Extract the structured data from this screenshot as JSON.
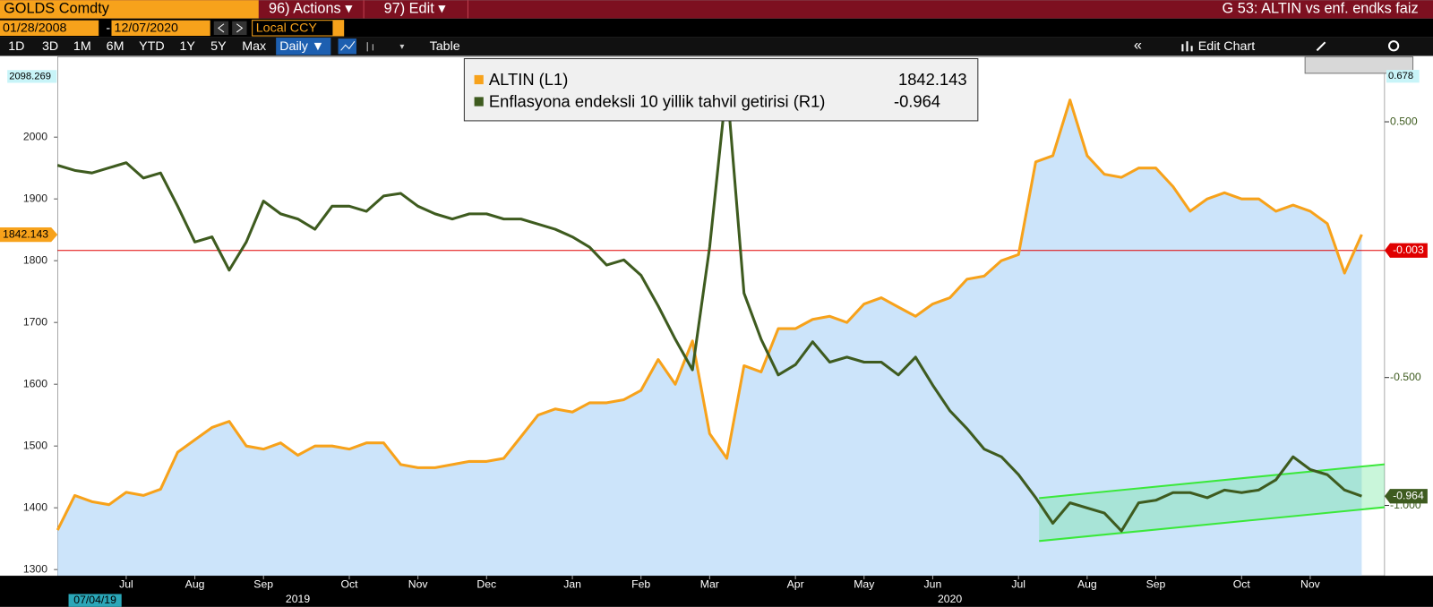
{
  "toolbar": {
    "ticker": "GOLDS Comdty",
    "actions": "96) Actions ▾",
    "edit": "97) Edit ▾",
    "page_title": "G 53: ALTIN vs enf. endks faiz",
    "start_date": "01/28/2008",
    "date_sep": "-",
    "end_date": "12/07/2020",
    "currency": "Local CCY",
    "periods": [
      "1D",
      "3D",
      "1M",
      "6M",
      "YTD",
      "1Y",
      "5Y",
      "Max"
    ],
    "frequency": "Daily ▼",
    "table": "Table",
    "edit_chart": "Edit Chart"
  },
  "chart_data": {
    "type": "line",
    "categories": [
      null,
      null,
      null,
      null,
      "Jul",
      null,
      null,
      null,
      "Aug",
      null,
      null,
      null,
      "Sep",
      null,
      null,
      null,
      null,
      "Oct",
      null,
      null,
      null,
      "Nov",
      null,
      null,
      null,
      "Dec",
      null,
      null,
      null,
      null,
      "Jan",
      null,
      null,
      null,
      "Feb",
      null,
      null,
      null,
      "Mar",
      null,
      null,
      null,
      null,
      "Apr",
      null,
      null,
      null,
      "May",
      null,
      null,
      null,
      "Jun",
      null,
      null,
      null,
      null,
      "Jul",
      null,
      null,
      null,
      "Aug",
      null,
      null,
      null,
      "Sep",
      null,
      null,
      null,
      null,
      "Oct",
      null,
      null,
      null,
      "Nov",
      null,
      null,
      null
    ],
    "years": [
      "2019",
      "2020"
    ],
    "start_label": "07/04/19",
    "series": [
      {
        "name": "ALTIN (L1)",
        "color": "#f7a21b",
        "area_color": "#cce4fa",
        "values": [
          1364,
          1420,
          1410,
          1405,
          1425,
          1420,
          1430,
          1490,
          1510,
          1530,
          1540,
          1500,
          1495,
          1505,
          1485,
          1500,
          1500,
          1495,
          1505,
          1505,
          1470,
          1465,
          1465,
          1470,
          1475,
          1475,
          1480,
          1515,
          1550,
          1560,
          1555,
          1570,
          1570,
          1575,
          1590,
          1640,
          1600,
          1670,
          1520,
          1480,
          1630,
          1620,
          1690,
          1690,
          1705,
          1710,
          1700,
          1730,
          1740,
          1725,
          1710,
          1730,
          1740,
          1770,
          1775,
          1800,
          1810,
          1960,
          1970,
          2060,
          1970,
          1940,
          1935,
          1950,
          1950,
          1920,
          1880,
          1900,
          1910,
          1900,
          1900,
          1880,
          1890,
          1880,
          1860,
          1780,
          1842.143
        ]
      },
      {
        "name": "Enflasyona endeksli 10 yillik tahvil getirisi (R1)",
        "color": "#3e5b1f",
        "axis": "y2",
        "values": [
          0.33,
          0.31,
          0.3,
          0.32,
          0.34,
          0.28,
          0.3,
          0.17,
          0.03,
          0.05,
          -0.08,
          0.03,
          0.19,
          0.14,
          0.12,
          0.08,
          0.17,
          0.17,
          0.15,
          0.21,
          0.22,
          0.17,
          0.14,
          0.12,
          0.14,
          0.14,
          0.12,
          0.12,
          0.1,
          0.08,
          0.05,
          0.01,
          -0.06,
          -0.04,
          -0.1,
          -0.22,
          -0.35,
          -0.47,
          0.01,
          0.65,
          -0.17,
          -0.35,
          -0.49,
          -0.45,
          -0.36,
          -0.44,
          -0.42,
          -0.44,
          -0.44,
          -0.49,
          -0.42,
          -0.53,
          -0.63,
          -0.7,
          -0.78,
          -0.81,
          -0.88,
          -0.97,
          -1.07,
          -0.99,
          -1.01,
          -1.03,
          -1.1,
          -0.99,
          -0.98,
          -0.95,
          -0.95,
          -0.97,
          -0.94,
          -0.95,
          -0.94,
          -0.9,
          -0.81,
          -0.86,
          -0.88,
          -0.94,
          -0.964
        ]
      }
    ],
    "ylim": [
      1290,
      2130
    ],
    "yticks": [
      1300,
      1400,
      1500,
      1600,
      1700,
      1800,
      1900,
      2000
    ],
    "y2lim": [
      -1.275,
      0.754
    ],
    "y2ticks": [
      {
        "value": 0.5,
        "label": "0.500"
      },
      {
        "value": -0.5,
        "label": "-0.500"
      },
      {
        "value": -1,
        "label": "-1.000"
      }
    ],
    "high_labels": {
      "y": 2098.269,
      "y2": 0.678
    },
    "reference_line": {
      "value": -0.003,
      "axis": "y2",
      "color": "#e00000"
    }
  }
}
